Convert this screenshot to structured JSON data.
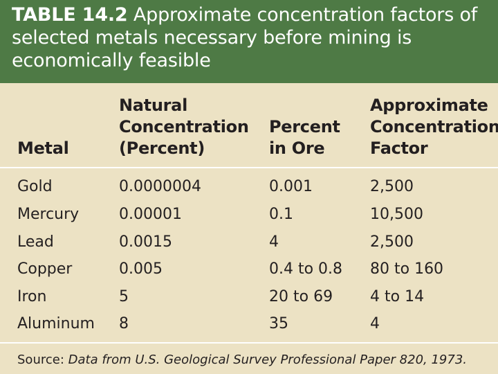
{
  "title": {
    "label": "TABLE 14.2",
    "text": "Approximate concentration factors of selected metals necessary before mining is economically feasible"
  },
  "columns": [
    "Metal",
    "Natural\nConcentration\n(Percent)",
    "Percent\nin Ore",
    "Approximate\nConcentration\nFactor"
  ],
  "rows": [
    [
      "Gold",
      "0.0000004",
      "0.001",
      "2,500"
    ],
    [
      "Mercury",
      "0.00001",
      "0.1",
      "10,500"
    ],
    [
      "Lead",
      "0.0015",
      "4",
      "2,500"
    ],
    [
      "Copper",
      "0.005",
      "0.4 to 0.8",
      "80 to 160"
    ],
    [
      "Iron",
      "5",
      "20 to 69",
      "4 to 14"
    ],
    [
      "Aluminum",
      "8",
      "35",
      "4"
    ]
  ],
  "source": {
    "label": "Source:",
    "text": "Data from U.S. Geological Survey Professional Paper 820, 1973."
  },
  "colors": {
    "title_background": "#4e7a45",
    "page_background": "#ece2c4",
    "text": "#231f20"
  }
}
